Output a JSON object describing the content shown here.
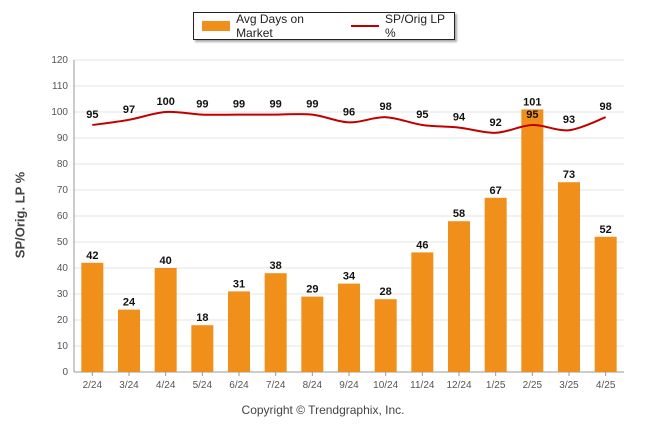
{
  "legend": {
    "bar_label": "Avg Days on Market",
    "line_label": "SP/Orig LP %"
  },
  "footer": "Copyright © Trendgraphix, Inc.",
  "colors": {
    "bar": "#f0901a",
    "line": "#c00000"
  },
  "chart_data": {
    "type": "bar",
    "categories": [
      "2/24",
      "3/24",
      "4/24",
      "5/24",
      "6/24",
      "7/24",
      "8/24",
      "9/24",
      "10/24",
      "11/24",
      "12/24",
      "1/25",
      "2/25",
      "3/25",
      "4/25"
    ],
    "series": [
      {
        "name": "Avg Days on Market",
        "type": "bar",
        "values": [
          42,
          24,
          40,
          18,
          31,
          38,
          29,
          34,
          28,
          46,
          58,
          67,
          101,
          73,
          52
        ]
      },
      {
        "name": "SP/Orig LP %",
        "type": "line",
        "values": [
          95,
          97,
          100,
          99,
          99,
          99,
          99,
          96,
          98,
          95,
          94,
          92,
          95,
          93,
          98
        ]
      }
    ],
    "ylabel": "SP/Orig. LP %",
    "ylim": [
      0,
      120
    ],
    "yticks": [
      0,
      10,
      20,
      30,
      40,
      50,
      60,
      70,
      80,
      90,
      100,
      110,
      120
    ],
    "grid": true,
    "legend_position": "top-center"
  }
}
